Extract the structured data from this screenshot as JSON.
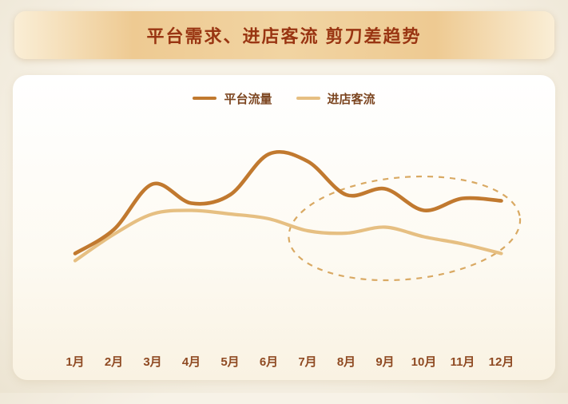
{
  "banner": {
    "title": "平台需求、进店客流 剪刀差趋势"
  },
  "colors": {
    "banner_text": "#993512",
    "line_platform": "#c1792f",
    "line_store": "#e6bf82",
    "axis_label": "#8f4a22",
    "ellipse": "#d9a963"
  },
  "chart_data": {
    "type": "line",
    "title": "平台需求、进店客流 剪刀差趋势",
    "categories": [
      "1月",
      "2月",
      "3月",
      "4月",
      "5月",
      "6月",
      "7月",
      "8月",
      "9月",
      "10月",
      "11月",
      "12月"
    ],
    "series": [
      {
        "name": "平台流量",
        "color": "#c1792f",
        "values": [
          9,
          29,
          67,
          51,
          58,
          92,
          86,
          58,
          63,
          45,
          55,
          53
        ]
      },
      {
        "name": "进店客流",
        "color": "#e6bf82",
        "values": [
          3,
          25,
          42,
          45,
          42,
          38,
          28,
          26,
          31,
          23,
          17,
          9
        ]
      }
    ],
    "ylim": [
      0,
      100
    ],
    "grid": false,
    "legend_position": "top",
    "annotations": [
      {
        "type": "dashed-ellipse",
        "from": "7月",
        "to": "12月",
        "color": "#d9a963"
      }
    ]
  }
}
